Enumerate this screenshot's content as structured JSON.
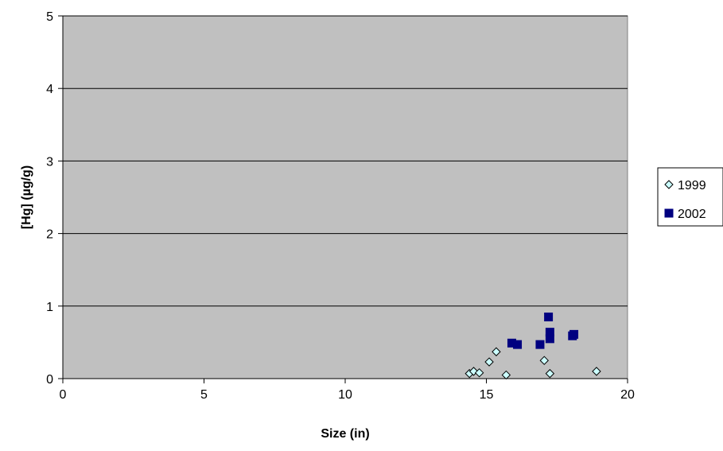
{
  "chart_data": {
    "type": "scatter",
    "title": "",
    "xlabel": "Size (in)",
    "ylabel": "[Hg] (µg/g)",
    "xlim": [
      0,
      20
    ],
    "ylim": [
      0,
      5
    ],
    "xticks": [
      0,
      5,
      10,
      15,
      20
    ],
    "yticks": [
      0,
      1,
      2,
      3,
      4,
      5
    ],
    "grid": "horizontal",
    "plot_background": "#c0c0c0",
    "legend_position": "right",
    "series": [
      {
        "name": "1999",
        "marker": "diamond",
        "color": "#ccffff",
        "stroke": "#000000",
        "points": [
          {
            "x": 14.4,
            "y": 0.07
          },
          {
            "x": 14.55,
            "y": 0.1
          },
          {
            "x": 14.75,
            "y": 0.08
          },
          {
            "x": 15.1,
            "y": 0.23
          },
          {
            "x": 15.35,
            "y": 0.37
          },
          {
            "x": 15.7,
            "y": 0.05
          },
          {
            "x": 17.05,
            "y": 0.25
          },
          {
            "x": 17.25,
            "y": 0.07
          },
          {
            "x": 18.9,
            "y": 0.1
          }
        ]
      },
      {
        "name": "2002",
        "marker": "square",
        "color": "#000080",
        "stroke": "#000080",
        "points": [
          {
            "x": 15.9,
            "y": 0.49
          },
          {
            "x": 16.1,
            "y": 0.47
          },
          {
            "x": 16.9,
            "y": 0.47
          },
          {
            "x": 17.2,
            "y": 0.85
          },
          {
            "x": 17.25,
            "y": 0.64
          },
          {
            "x": 17.25,
            "y": 0.55
          },
          {
            "x": 18.05,
            "y": 0.59
          },
          {
            "x": 18.1,
            "y": 0.61
          }
        ]
      }
    ]
  }
}
